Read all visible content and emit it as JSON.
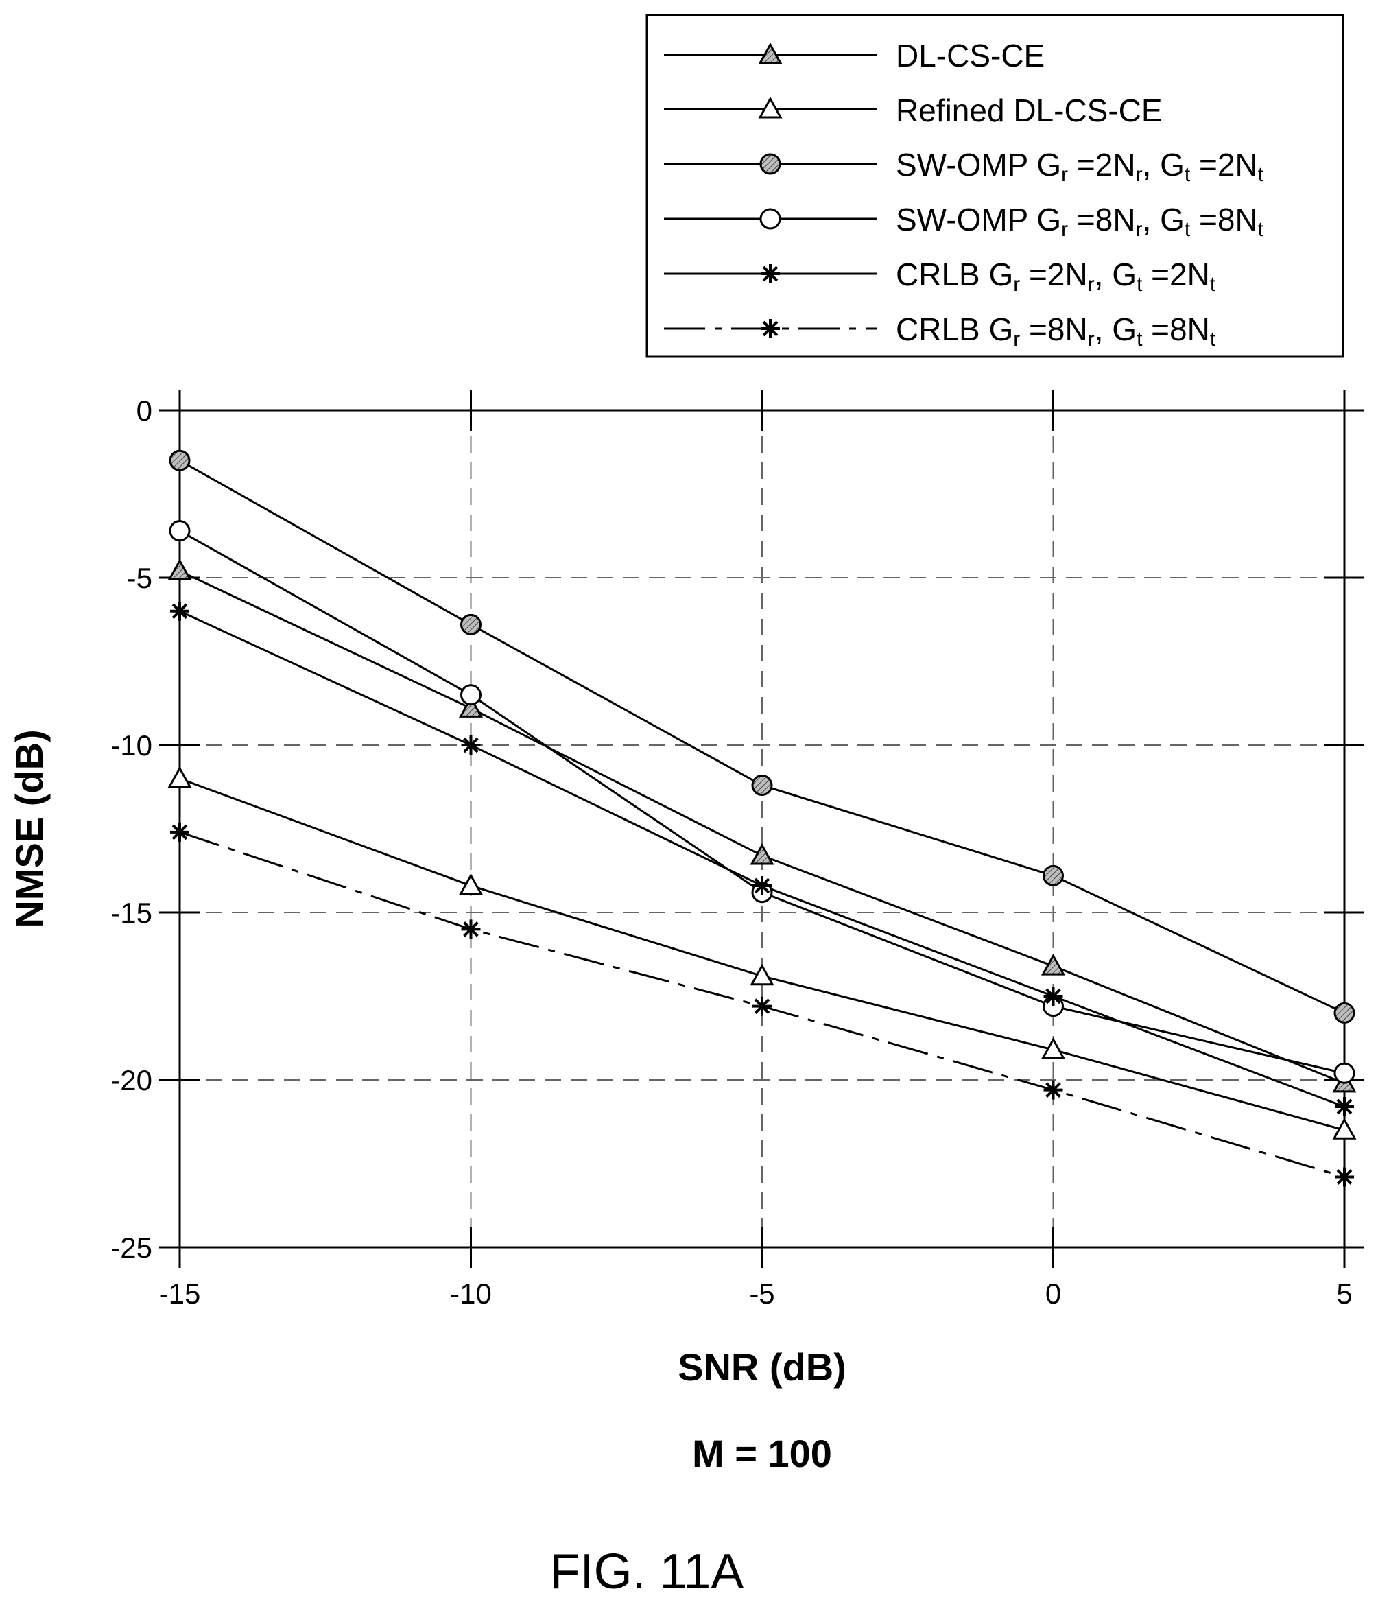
{
  "chart_data": {
    "type": "line",
    "title": "",
    "xlabel": "SNR (dB)",
    "ylabel": "NMSE (dB)",
    "subtitle": "M = 100",
    "caption": "FIG. 11A",
    "xlim": [
      -15,
      5
    ],
    "ylim": [
      -25,
      0
    ],
    "xticks": [
      -15,
      -10,
      -5,
      0,
      5
    ],
    "yticks": [
      0,
      -5,
      -10,
      -15,
      -20,
      -25
    ],
    "xtick_labels": [
      "-15",
      "-10",
      "-5",
      "0",
      "5"
    ],
    "ytick_labels": [
      "0",
      "-5",
      "-10",
      "-15",
      "-20",
      "-25"
    ],
    "grid": true,
    "legend_position": "top-right",
    "x": [
      -15,
      -10,
      -5,
      0,
      5
    ],
    "series": [
      {
        "name": "DL-CS-CE",
        "marker": "triangle-filled",
        "line": "solid",
        "values": [
          -4.8,
          -8.9,
          -13.3,
          -16.6,
          -20.1
        ]
      },
      {
        "name": "Refined DL-CS-CE",
        "marker": "triangle-open",
        "line": "solid",
        "values": [
          -11.0,
          -14.2,
          -16.9,
          -19.1,
          -21.5
        ]
      },
      {
        "name": "SW-OMP G_r =2N_r, G_t =2N_t",
        "marker": "circle-filled",
        "line": "solid",
        "values": [
          -1.5,
          -6.4,
          -11.2,
          -13.9,
          -18.0
        ]
      },
      {
        "name": "SW-OMP G_r =8N_r, G_t =8N_t",
        "marker": "circle-open",
        "line": "solid",
        "values": [
          -3.6,
          -8.5,
          -14.4,
          -17.8,
          -19.8
        ]
      },
      {
        "name": "CRLB G_r =2N_r, G_t =2N_t",
        "marker": "star",
        "line": "solid",
        "values": [
          -6.0,
          -10.0,
          -14.2,
          -17.5,
          -20.8
        ]
      },
      {
        "name": "CRLB G_r =8N_r, G_t =8N_t",
        "marker": "star",
        "line": "dashdot",
        "values": [
          -12.6,
          -15.5,
          -17.8,
          -20.3,
          -22.9
        ]
      }
    ],
    "legend": [
      {
        "p1": "SW-OMP G",
        "s1": "r",
        "p2": " =2N",
        "s2": "r",
        "p3": ", G",
        "s3": "t",
        "p4": " =2N",
        "s4": "t"
      },
      {
        "p1": "SW-OMP G",
        "s1": "r",
        "p2": " =8N",
        "s2": "r",
        "p3": ", G",
        "s3": "t",
        "p4": " =8N",
        "s4": "t"
      },
      {
        "p1": "CRLB G",
        "s1": "r",
        "p2": " =2N",
        "s2": "r",
        "p3": ", G",
        "s3": "t",
        "p4": " =2N",
        "s4": "t"
      },
      {
        "p1": "CRLB G",
        "s1": "r",
        "p2": " =8N",
        "s2": "r",
        "p3": ", G",
        "s3": "t",
        "p4": " =8N",
        "s4": "t"
      }
    ],
    "colors": {
      "line": "#000000",
      "marker_fill": "#ffffff",
      "marker_hatch": "#9a9a9a",
      "grid": "#555555"
    }
  }
}
